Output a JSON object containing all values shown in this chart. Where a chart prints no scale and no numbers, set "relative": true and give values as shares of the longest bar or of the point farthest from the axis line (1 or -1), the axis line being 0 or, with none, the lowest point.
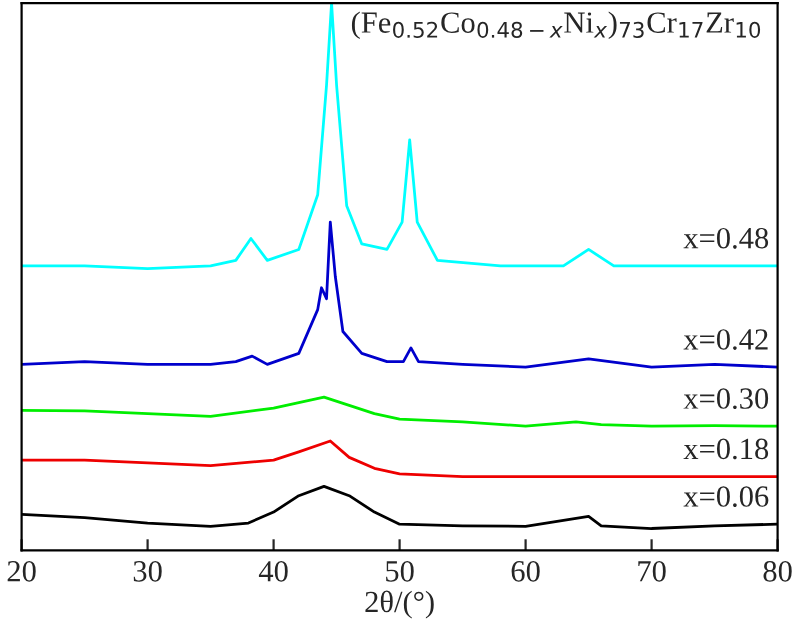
{
  "chart_data": {
    "type": "line",
    "title": "(Fe$_{0.52}$Co$_{0.48−x}$Ni$_{x}$)$_{73}$Cr$_{17}$Zr$_{10}$",
    "xlabel": "2θ/(°)",
    "relative": true,
    "xlim": [
      20,
      80
    ],
    "xticks": [
      20,
      30,
      40,
      50,
      60,
      70,
      80
    ],
    "legend": false,
    "grid": false,
    "series": [
      {
        "name": "x=0.48",
        "color": "#00ffff",
        "x": [
          20,
          25,
          30,
          35,
          37,
          38.2,
          39.5,
          42,
          43.5,
          44.2,
          44.6,
          45,
          45.8,
          47,
          49,
          50.2,
          50.8,
          51.4,
          53,
          58,
          63,
          65,
          67,
          72,
          76,
          80
        ],
        "values": [
          0.52,
          0.52,
          0.515,
          0.52,
          0.53,
          0.57,
          0.53,
          0.55,
          0.65,
          0.85,
          1.0,
          0.85,
          0.63,
          0.56,
          0.55,
          0.6,
          0.75,
          0.6,
          0.53,
          0.52,
          0.52,
          0.55,
          0.52,
          0.52,
          0.52,
          0.52
        ]
      },
      {
        "name": "x=0.42",
        "color": "#0000cc",
        "x": [
          20,
          25,
          30,
          35,
          37,
          38.3,
          39.5,
          42,
          43.5,
          43.8,
          44.2,
          44.5,
          44.9,
          45.5,
          47,
          49,
          50.3,
          50.9,
          51.5,
          55,
          60,
          65,
          70,
          75,
          80
        ],
        "values": [
          0.34,
          0.345,
          0.34,
          0.34,
          0.345,
          0.355,
          0.34,
          0.36,
          0.44,
          0.48,
          0.46,
          0.6,
          0.5,
          0.4,
          0.36,
          0.345,
          0.345,
          0.37,
          0.345,
          0.34,
          0.335,
          0.35,
          0.335,
          0.34,
          0.335
        ]
      },
      {
        "name": "x=0.30",
        "color": "#00ee00",
        "x": [
          20,
          25,
          30,
          35,
          40,
          42,
          44,
          46,
          48,
          50,
          55,
          60,
          64,
          66,
          70,
          75,
          80
        ],
        "values": [
          0.256,
          0.255,
          0.25,
          0.245,
          0.26,
          0.27,
          0.28,
          0.265,
          0.25,
          0.24,
          0.235,
          0.227,
          0.235,
          0.23,
          0.227,
          0.228,
          0.227
        ]
      },
      {
        "name": "x=0.18",
        "color": "#ee0000",
        "x": [
          20,
          25,
          30,
          35,
          40,
          42,
          44.5,
          46,
          48,
          50,
          55,
          60,
          65,
          70,
          75,
          80
        ],
        "values": [
          0.165,
          0.165,
          0.16,
          0.155,
          0.165,
          0.18,
          0.2,
          0.17,
          0.15,
          0.14,
          0.135,
          0.135,
          0.135,
          0.135,
          0.135,
          0.135
        ]
      },
      {
        "name": "x=0.06",
        "color": "#000000",
        "x": [
          20,
          25,
          30,
          35,
          38,
          40,
          42,
          44,
          46,
          48,
          50,
          55,
          60,
          65,
          66,
          70,
          75,
          80
        ],
        "values": [
          0.066,
          0.06,
          0.05,
          0.044,
          0.05,
          0.07,
          0.1,
          0.117,
          0.1,
          0.07,
          0.048,
          0.045,
          0.044,
          0.062,
          0.045,
          0.04,
          0.045,
          0.048
        ]
      }
    ]
  }
}
